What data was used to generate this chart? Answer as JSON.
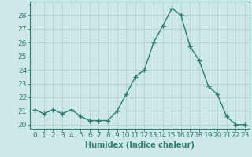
{
  "x": [
    0,
    1,
    2,
    3,
    4,
    5,
    6,
    7,
    8,
    9,
    10,
    11,
    12,
    13,
    14,
    15,
    16,
    17,
    18,
    19,
    20,
    21,
    22,
    23
  ],
  "y": [
    21.1,
    20.8,
    21.1,
    20.8,
    21.1,
    20.6,
    20.3,
    20.3,
    20.3,
    21.0,
    22.2,
    23.5,
    24.0,
    26.0,
    27.2,
    28.5,
    28.0,
    25.7,
    24.7,
    22.8,
    22.2,
    20.6,
    20.0,
    20.0
  ],
  "xlabel": "Humidex (Indice chaleur)",
  "ylabel": "",
  "xlim": [
    -0.5,
    23.5
  ],
  "ylim": [
    19.7,
    29.0
  ],
  "yticks": [
    20,
    21,
    22,
    23,
    24,
    25,
    26,
    27,
    28
  ],
  "xticks": [
    0,
    1,
    2,
    3,
    4,
    5,
    6,
    7,
    8,
    9,
    10,
    11,
    12,
    13,
    14,
    15,
    16,
    17,
    18,
    19,
    20,
    21,
    22,
    23
  ],
  "line_color": "#2e7d6e",
  "marker": "+",
  "marker_size": 4,
  "line_width": 1.0,
  "bg_color": "#cce8e8",
  "grid_color": "#b0cccc",
  "xlabel_fontsize": 7,
  "tick_fontsize": 6.5
}
